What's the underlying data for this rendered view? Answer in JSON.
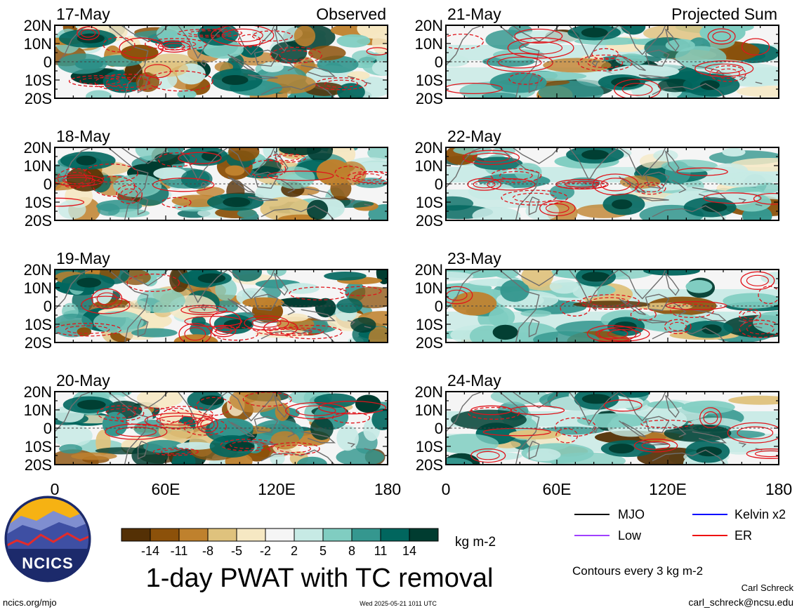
{
  "columns": {
    "left_label": "Observed",
    "right_label": "Projected Sum"
  },
  "panels": [
    {
      "date": "17-May",
      "column": "observed"
    },
    {
      "date": "18-May",
      "column": "observed"
    },
    {
      "date": "19-May",
      "column": "observed"
    },
    {
      "date": "20-May",
      "column": "observed"
    },
    {
      "date": "21-May",
      "column": "projected"
    },
    {
      "date": "22-May",
      "column": "projected"
    },
    {
      "date": "23-May",
      "column": "projected"
    },
    {
      "date": "24-May",
      "column": "projected"
    }
  ],
  "axes": {
    "lat_ticks": [
      "20N",
      "10N",
      "0",
      "10S",
      "20S"
    ],
    "lat_range": [
      -20,
      20
    ],
    "lon_ticks": [
      "0",
      "60E",
      "120E",
      "180"
    ],
    "lon_range": [
      0,
      180
    ]
  },
  "colorbar": {
    "labels": [
      "-14",
      "-11",
      "-8",
      "-5",
      "-2",
      "2",
      "5",
      "8",
      "11",
      "14"
    ],
    "colors": [
      "#543005",
      "#8c510a",
      "#bf812d",
      "#dfc27d",
      "#f6e8c3",
      "#f5f5f5",
      "#c7eae5",
      "#80cdc1",
      "#35978f",
      "#01665e",
      "#003c30"
    ],
    "units": "kg m-2"
  },
  "title": "1-day PWAT with TC removal",
  "legend": {
    "items": [
      {
        "label": "MJO",
        "color": "#000000"
      },
      {
        "label": "Kelvin x2",
        "color": "#0000ff"
      },
      {
        "label": "Low",
        "color": "#a040ff"
      },
      {
        "label": "ER",
        "color": "#ee1111"
      }
    ],
    "contour_note": "Contours every 3 kg m-2"
  },
  "credits": {
    "author": "Carl Schreck",
    "email": "carl_schreck@ncsu.edu",
    "url": "ncics.org/mjo",
    "timestamp": "Wed 2025-05-21 1011 UTC",
    "logo_text": "NCICS"
  }
}
